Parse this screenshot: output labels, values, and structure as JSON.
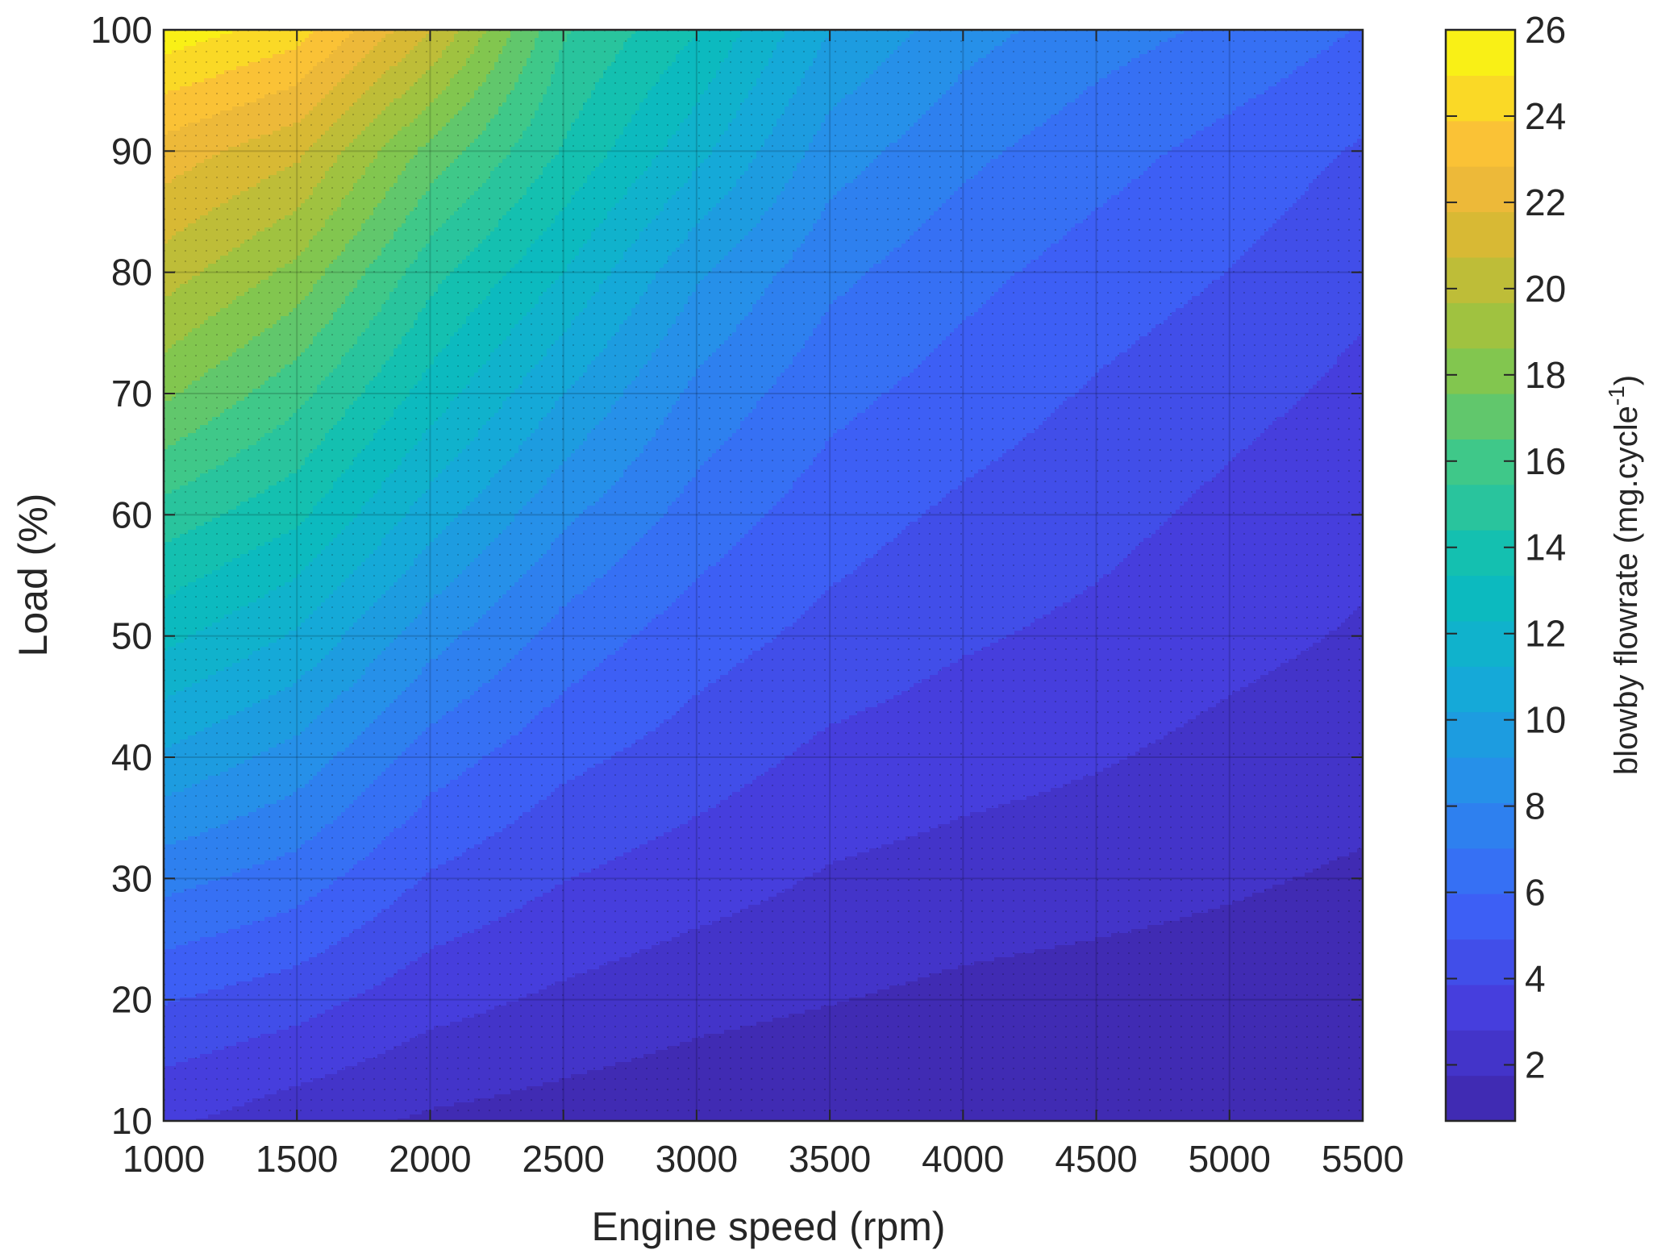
{
  "chart_data": {
    "type": "heatmap",
    "subtype": "filled-contour",
    "xlabel": "Engine speed  (rpm)",
    "ylabel": "Load (%)",
    "colorbar_label_main": "blowby flowrate (mg.cycle",
    "colorbar_label_sup": "-1",
    "colorbar_label_close": ")",
    "xlim": [
      1000,
      5500
    ],
    "ylim": [
      10,
      100
    ],
    "xticks": [
      "1000",
      "1500",
      "2000",
      "2500",
      "3000",
      "3500",
      "4000",
      "4500",
      "5000",
      "5500"
    ],
    "yticks": [
      "10",
      "20",
      "30",
      "40",
      "50",
      "60",
      "70",
      "80",
      "90",
      "100"
    ],
    "colorbar_ticks": [
      "2",
      "4",
      "6",
      "8",
      "10",
      "12",
      "14",
      "16",
      "18",
      "20",
      "22",
      "24",
      "26"
    ],
    "colorbar_range": [
      0.7,
      26
    ],
    "colormap": "parula",
    "contour_levels": 24,
    "grid": true,
    "colorbar_position": "right",
    "x": [
      1000,
      1500,
      2000,
      2500,
      3000,
      3500,
      4000,
      4500,
      5000,
      5500
    ],
    "y": [
      10,
      20,
      30,
      40,
      50,
      60,
      70,
      80,
      90,
      100
    ],
    "z": [
      [
        3.0,
        2.2,
        1.6,
        1.3,
        1.0,
        0.8,
        0.7,
        0.7,
        0.7,
        0.7
      ],
      [
        5.0,
        4.3,
        3.2,
        2.6,
        2.1,
        1.8,
        1.5,
        1.3,
        1.2,
        1.0
      ],
      [
        7.4,
        6.5,
        4.8,
        3.9,
        3.3,
        2.7,
        2.4,
        2.2,
        1.9,
        1.6
      ],
      [
        10.0,
        8.7,
        6.5,
        5.2,
        4.4,
        3.6,
        3.2,
        2.9,
        2.5,
        2.2
      ],
      [
        12.6,
        11.1,
        8.5,
        6.6,
        5.4,
        4.6,
        4.0,
        3.6,
        3.1,
        2.7
      ],
      [
        15.0,
        13.6,
        10.7,
        8.3,
        6.6,
        5.4,
        4.7,
        4.2,
        3.6,
        3.1
      ],
      [
        17.8,
        15.8,
        12.9,
        10.2,
        7.8,
        6.3,
        5.5,
        4.8,
        4.2,
        3.6
      ],
      [
        20.2,
        18.3,
        14.8,
        12.3,
        9.3,
        7.3,
        6.3,
        5.5,
        4.9,
        4.1
      ],
      [
        22.4,
        21.0,
        17.2,
        14.3,
        11.6,
        8.6,
        7.3,
        6.4,
        5.6,
        4.8
      ],
      [
        25.6,
        24.4,
        20.8,
        15.6,
        13.4,
        10.2,
        8.5,
        7.5,
        6.8,
        5.9
      ]
    ]
  }
}
